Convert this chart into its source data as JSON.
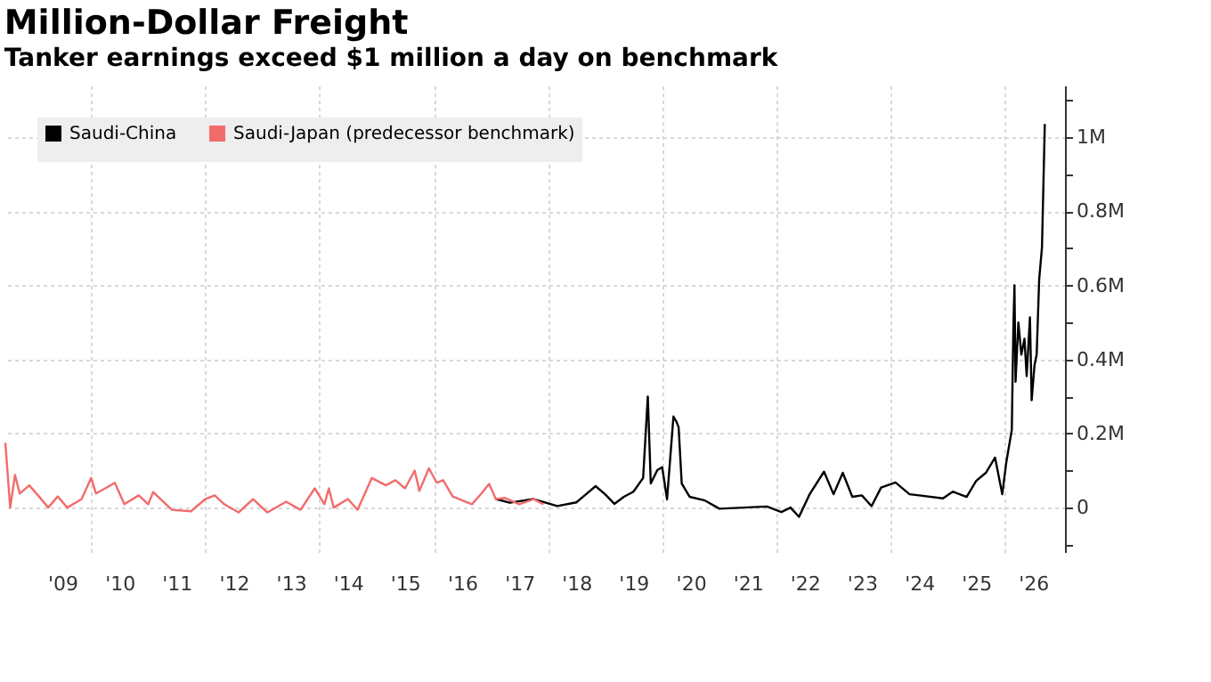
{
  "chart_data": {
    "type": "line",
    "title": "Million-Dollar Freight",
    "subtitle": "Tanker earnings exceed $1 million a day on benchmark",
    "legend": "top left",
    "grid": true,
    "marker": "none",
    "line_style": "solid",
    "xlim": [
      "2008-07-01",
      "2027-01-20"
    ],
    "ylim": [
      -120000,
      1140000
    ],
    "xticks": [
      {
        "value": "2009-07-01",
        "label": "'09"
      },
      {
        "value": "2010-07-01",
        "label": "'10"
      },
      {
        "value": "2011-07-01",
        "label": "'11"
      },
      {
        "value": "2012-07-01",
        "label": "'12"
      },
      {
        "value": "2013-07-01",
        "label": "'13"
      },
      {
        "value": "2014-07-01",
        "label": "'14"
      },
      {
        "value": "2015-07-01",
        "label": "'15"
      },
      {
        "value": "2016-07-01",
        "label": "'16"
      },
      {
        "value": "2017-07-01",
        "label": "'17"
      },
      {
        "value": "2018-07-01",
        "label": "'18"
      },
      {
        "value": "2019-07-01",
        "label": "'19"
      },
      {
        "value": "2020-07-01",
        "label": "'20"
      },
      {
        "value": "2021-07-01",
        "label": "'21"
      },
      {
        "value": "2022-07-01",
        "label": "'22"
      },
      {
        "value": "2023-07-01",
        "label": "'23"
      },
      {
        "value": "2024-07-01",
        "label": "'24"
      },
      {
        "value": "2025-07-01",
        "label": "'25"
      },
      {
        "value": "2026-07-01",
        "label": "'26"
      },
      {
        "value": "2010-01-01",
        "label": null
      },
      {
        "value": "2012-01-01",
        "label": null
      },
      {
        "value": "2014-01-01",
        "label": null
      },
      {
        "value": "2016-01-01",
        "label": null
      },
      {
        "value": "2018-01-01",
        "label": null
      },
      {
        "value": "2020-01-01",
        "label": null
      },
      {
        "value": "2022-01-01",
        "label": null
      },
      {
        "value": "2024-01-01",
        "label": null
      },
      {
        "value": "2026-01-01",
        "label": null
      }
    ],
    "yticks": [
      {
        "value": 0,
        "label": "0"
      },
      {
        "value": 200000,
        "label": "0.2M"
      },
      {
        "value": 400000,
        "label": "0.4M"
      },
      {
        "value": 600000,
        "label": "0.6M"
      },
      {
        "value": 800000,
        "label": "0.8M"
      },
      {
        "value": 1000000,
        "label": "1M"
      },
      {
        "value": -100000,
        "label": null
      },
      {
        "value": 100000,
        "label": null
      },
      {
        "value": 300000,
        "label": null
      },
      {
        "value": 500000,
        "label": null
      },
      {
        "value": 700000,
        "label": null
      },
      {
        "value": 900000,
        "label": null
      },
      {
        "value": 1100000,
        "label": null
      }
    ],
    "series": [
      {
        "name": "Saudi-China",
        "color": "#000000",
        "x": [
          "2017-02-01",
          "2017-05-01",
          "2017-10-01",
          "2018-03-01",
          "2018-07-01",
          "2018-09-01",
          "2018-11-01",
          "2019-01-01",
          "2019-03-01",
          "2019-05-01",
          "2019-07-01",
          "2019-09-01",
          "2019-10-01",
          "2019-10-20",
          "2019-12-01",
          "2020-01-01",
          "2020-02-01",
          "2020-03-13",
          "2020-04-01",
          "2020-04-15",
          "2020-05-05",
          "2020-06-25",
          "2020-10-01",
          "2021-01-01",
          "2021-06-01",
          "2021-11-01",
          "2022-02-01",
          "2022-04-01",
          "2022-05-25",
          "2022-08-01",
          "2022-11-01",
          "2023-01-01",
          "2023-03-01",
          "2023-05-01",
          "2023-07-01",
          "2023-09-01",
          "2023-11-01",
          "2024-02-01",
          "2024-05-01",
          "2024-07-01",
          "2024-12-01",
          "2025-02-01",
          "2025-05-01",
          "2025-07-01",
          "2025-09-01",
          "2025-10-30",
          "2025-12-15",
          "2026-01-10",
          "2026-02-14",
          "2026-02-24",
          "2026-03-03",
          "2026-03-10",
          "2026-03-28",
          "2026-04-16",
          "2026-05-06",
          "2026-05-20",
          "2026-06-10",
          "2026-06-21",
          "2026-07-09",
          "2026-07-23",
          "2026-08-08",
          "2026-08-26",
          "2026-09-13"
        ],
        "values": [
          23000,
          13000,
          23000,
          4000,
          14000,
          36000,
          58000,
          36000,
          10000,
          29000,
          43000,
          80000,
          300000,
          65000,
          101000,
          109000,
          22000,
          246000,
          232000,
          217000,
          65000,
          29000,
          19000,
          -3000,
          0,
          3000,
          -12000,
          0,
          -25000,
          36000,
          97000,
          36000,
          94000,
          29000,
          33000,
          4000,
          54000,
          68000,
          36000,
          33000,
          25000,
          43000,
          29000,
          72000,
          94000,
          135000,
          36000,
          123000,
          210000,
          485000,
          600000,
          340000,
          500000,
          413000,
          456000,
          355000,
          514000,
          290000,
          384000,
          413000,
          616000,
          703000,
          1036000
        ]
      },
      {
        "name": "Saudi-Japan (predecessor benchmark)",
        "color": "#f26b6b",
        "x": [
          "2008-07-01",
          "2008-08-01",
          "2008-09-01",
          "2008-10-01",
          "2008-12-01",
          "2009-02-01",
          "2009-04-01",
          "2009-06-01",
          "2009-08-01",
          "2009-11-01",
          "2010-01-01",
          "2010-02-01",
          "2010-04-01",
          "2010-06-01",
          "2010-08-01",
          "2010-11-01",
          "2011-01-01",
          "2011-02-01",
          "2011-06-01",
          "2011-10-01",
          "2012-01-01",
          "2012-03-01",
          "2012-05-01",
          "2012-08-01",
          "2012-11-01",
          "2013-02-01",
          "2013-06-01",
          "2013-09-01",
          "2013-12-01",
          "2014-02-01",
          "2014-03-01",
          "2014-04-01",
          "2014-07-01",
          "2014-09-01",
          "2014-12-01",
          "2015-03-01",
          "2015-05-01",
          "2015-07-01",
          "2015-09-01",
          "2015-10-01",
          "2015-12-01",
          "2016-01-20",
          "2016-03-01",
          "2016-05-01",
          "2016-09-01",
          "2016-11-01",
          "2016-12-20",
          "2017-02-01",
          "2017-04-01",
          "2017-07-01",
          "2017-10-01",
          "2017-12-01"
        ],
        "values": [
          175000,
          0,
          88000,
          38000,
          60000,
          30000,
          0,
          30000,
          0,
          23000,
          80000,
          38000,
          52000,
          67000,
          9000,
          33000,
          9000,
          42000,
          -6000,
          -10000,
          23000,
          33000,
          9000,
          -13000,
          23000,
          -13000,
          16000,
          -6000,
          52000,
          9000,
          52000,
          0,
          23000,
          -6000,
          80000,
          60000,
          74000,
          52000,
          100000,
          45000,
          106000,
          67000,
          74000,
          30000,
          9000,
          38000,
          64000,
          23000,
          26000,
          9000,
          23000,
          9000
        ]
      }
    ]
  }
}
